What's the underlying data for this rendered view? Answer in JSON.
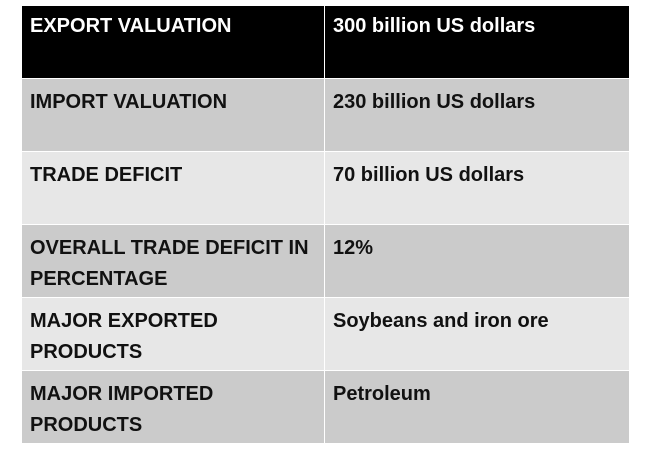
{
  "table": {
    "rows": [
      {
        "label": "EXPORT VALUATION",
        "value": "300 billion US dollars"
      },
      {
        "label": "IMPORT VALUATION",
        "value": "230 billion US dollars"
      },
      {
        "label": "TRADE DEFICIT",
        "value": "70 billion US dollars"
      },
      {
        "label": "OVERALL TRADE DEFICIT IN PERCENTAGE",
        "value": "12%"
      },
      {
        "label": "MAJOR EXPORTED PRODUCTS",
        "value": "Soybeans and iron ore"
      },
      {
        "label": "MAJOR IMPORTED PRODUCTS",
        "value": "Petroleum"
      }
    ],
    "colors": {
      "header_background": "#000000",
      "header_text": "#ffffff",
      "row_dark": "#cbcbcb",
      "row_light": "#e7e7e7",
      "body_text": "#111111"
    }
  }
}
